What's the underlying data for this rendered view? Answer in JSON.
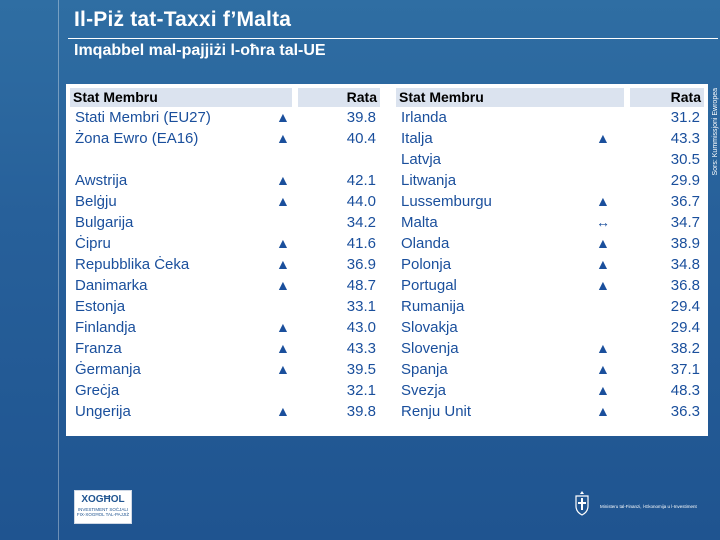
{
  "title": "Il-Piż tat-Taxxi f’Malta",
  "subtitle": "Imqabbel mal-pajjiżi l-oħra tal-UE",
  "source": "Sors: Kummissjoni Ewropea",
  "table": {
    "header_member": "Stat Membru",
    "header_rate": "Rata",
    "left": [
      {
        "name": "Stati Membri (EU27)",
        "arrow": "▲",
        "rate": "39.8"
      },
      {
        "name": "Żona Ewro (EA16)",
        "arrow": "▲",
        "rate": "40.4"
      },
      null,
      {
        "name": "Awstrija",
        "arrow": "▲",
        "rate": "42.1"
      },
      {
        "name": "Belġju",
        "arrow": "▲",
        "rate": "44.0"
      },
      {
        "name": "Bulgarija",
        "arrow": "",
        "rate": "34.2"
      },
      {
        "name": "Ċipru",
        "arrow": "▲",
        "rate": "41.6"
      },
      {
        "name": "Repubblika Ċeka",
        "arrow": "▲",
        "rate": "36.9"
      },
      {
        "name": "Danimarka",
        "arrow": "▲",
        "rate": "48.7"
      },
      {
        "name": "Estonja",
        "arrow": "",
        "rate": "33.1"
      },
      {
        "name": "Finlandja",
        "arrow": "▲",
        "rate": "43.0"
      },
      {
        "name": "Franza",
        "arrow": "▲",
        "rate": "43.3"
      },
      {
        "name": "Ġermanja",
        "arrow": "▲",
        "rate": "39.5"
      },
      {
        "name": "Greċja",
        "arrow": "",
        "rate": "32.1"
      },
      {
        "name": "Ungerija",
        "arrow": "▲",
        "rate": "39.8"
      }
    ],
    "right": [
      {
        "name": "Irlanda",
        "arrow": "",
        "rate": "31.2"
      },
      {
        "name": "Italja",
        "arrow": "▲",
        "rate": "43.3"
      },
      {
        "name": "Latvja",
        "arrow": "",
        "rate": "30.5"
      },
      {
        "name": "Litwanja",
        "arrow": "",
        "rate": "29.9"
      },
      {
        "name": "Lussemburgu",
        "arrow": "▲",
        "rate": "36.7"
      },
      {
        "name": "Malta",
        "arrow": "↔",
        "rate": "34.7"
      },
      {
        "name": "Olanda",
        "arrow": "▲",
        "rate": "38.9"
      },
      {
        "name": "Polonja",
        "arrow": "▲",
        "rate": "34.8"
      },
      {
        "name": "Portugal",
        "arrow": "▲",
        "rate": "36.8"
      },
      {
        "name": "Rumanija",
        "arrow": "",
        "rate": "29.4"
      },
      {
        "name": "Slovakja",
        "arrow": "",
        "rate": "29.4"
      },
      {
        "name": "Slovenja",
        "arrow": "▲",
        "rate": "38.2"
      },
      {
        "name": "Spanja",
        "arrow": "▲",
        "rate": "37.1"
      },
      {
        "name": "Svezja",
        "arrow": "▲",
        "rate": "48.3"
      },
      {
        "name": "Renju Unit",
        "arrow": "▲",
        "rate": "36.3"
      }
    ]
  },
  "footer": {
    "logo_brand": "XOGĦOL",
    "logo_tagline": "INVESTIMENT SOĊJALI FIX-XOGĦOL TAL-PAJJIŻ",
    "ministry": "Ministeru tal-Finanzi, l-Ekonomija u l-Investiment"
  }
}
